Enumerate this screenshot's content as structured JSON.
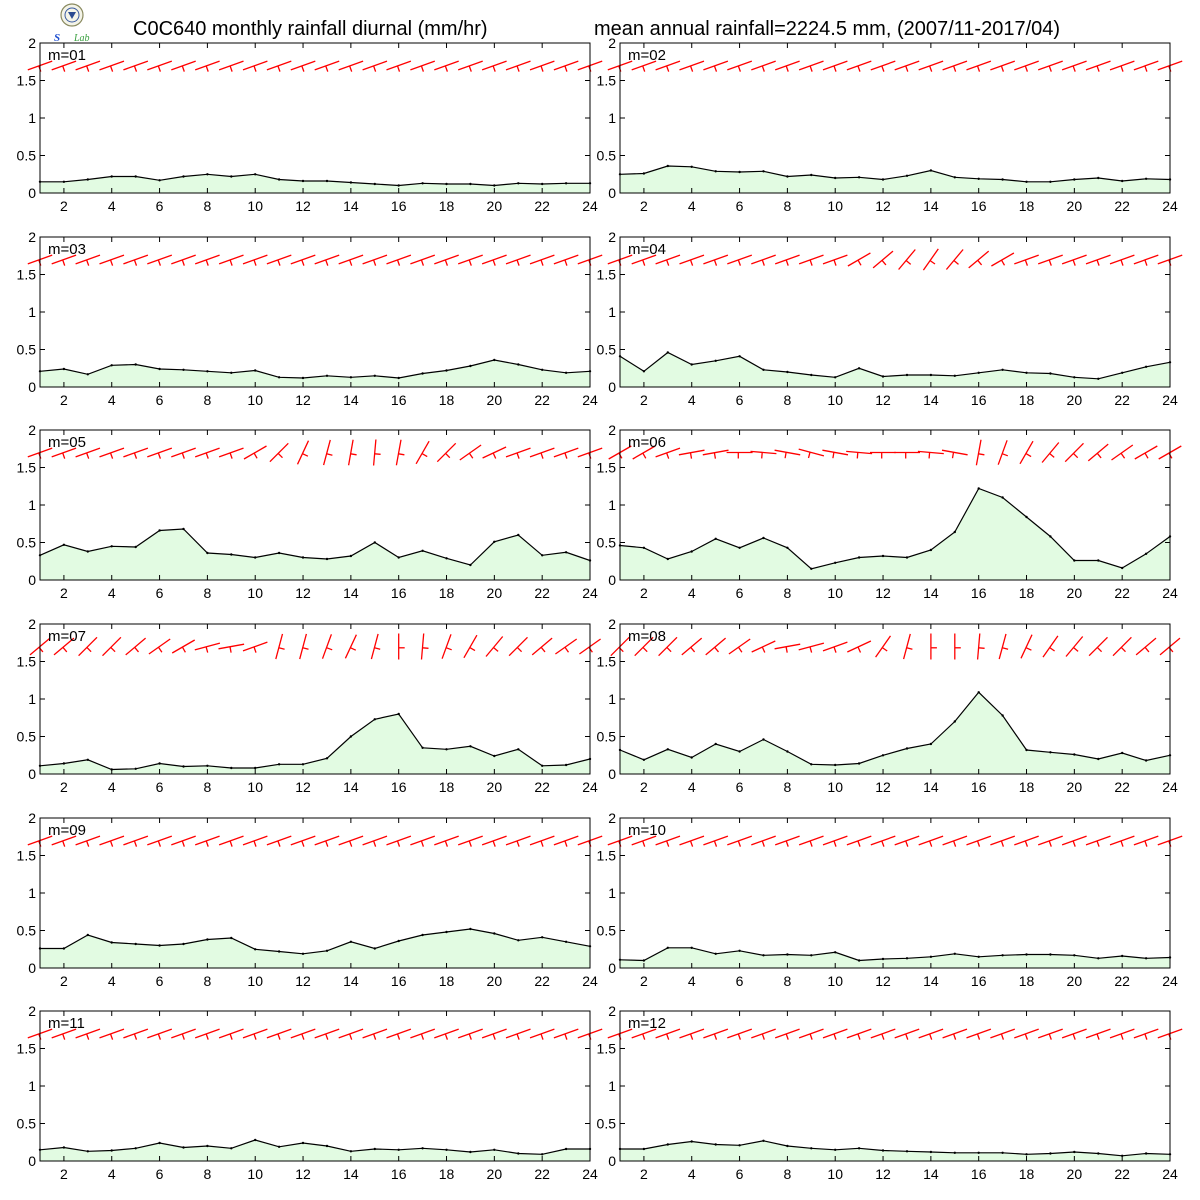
{
  "header": {
    "title_left": "C0C640 monthly rainfall diurnal (mm/hr)",
    "title_right": "mean annual rainfall=2224.5 mm, (2007/11-2017/04)",
    "logo_text": "Lab"
  },
  "colors": {
    "rain_fill": "#e2fbe2",
    "rain_line": "#000000",
    "wind_barb": "#ff0000",
    "axis": "#000000"
  },
  "axes": {
    "x_ticks": [
      2,
      4,
      6,
      8,
      10,
      12,
      14,
      16,
      18,
      20,
      22,
      24
    ],
    "y_ticks": [
      "0",
      "0.5",
      "1",
      "1.5",
      "2"
    ],
    "xlim": [
      1,
      24
    ],
    "ylim": [
      0,
      2
    ]
  },
  "chart_data": [
    {
      "type": "area",
      "label": "m=01",
      "x": [
        1,
        2,
        3,
        4,
        5,
        6,
        7,
        8,
        9,
        10,
        11,
        12,
        13,
        14,
        15,
        16,
        17,
        18,
        19,
        20,
        21,
        22,
        23,
        24
      ],
      "values": [
        0.15,
        0.15,
        0.18,
        0.22,
        0.22,
        0.17,
        0.22,
        0.25,
        0.22,
        0.25,
        0.18,
        0.16,
        0.16,
        0.14,
        0.12,
        0.1,
        0.13,
        0.12,
        0.12,
        0.1,
        0.13,
        0.12,
        0.13,
        0.13
      ],
      "wind_dir": [
        250,
        250,
        250,
        250,
        250,
        250,
        250,
        250,
        250,
        250,
        250,
        250,
        250,
        250,
        250,
        250,
        250,
        250,
        250,
        250,
        250,
        250,
        250,
        250
      ]
    },
    {
      "type": "area",
      "label": "m=02",
      "x": [
        1,
        2,
        3,
        4,
        5,
        6,
        7,
        8,
        9,
        10,
        11,
        12,
        13,
        14,
        15,
        16,
        17,
        18,
        19,
        20,
        21,
        22,
        23,
        24
      ],
      "values": [
        0.25,
        0.26,
        0.36,
        0.35,
        0.29,
        0.28,
        0.29,
        0.22,
        0.24,
        0.2,
        0.21,
        0.18,
        0.23,
        0.3,
        0.21,
        0.19,
        0.18,
        0.15,
        0.15,
        0.18,
        0.2,
        0.16,
        0.19,
        0.18
      ],
      "wind_dir": [
        250,
        250,
        250,
        250,
        250,
        250,
        250,
        250,
        250,
        250,
        250,
        250,
        250,
        250,
        250,
        250,
        250,
        250,
        250,
        250,
        250,
        250,
        250,
        250
      ]
    },
    {
      "type": "area",
      "label": "m=03",
      "x": [
        1,
        2,
        3,
        4,
        5,
        6,
        7,
        8,
        9,
        10,
        11,
        12,
        13,
        14,
        15,
        16,
        17,
        18,
        19,
        20,
        21,
        22,
        23,
        24
      ],
      "values": [
        0.21,
        0.24,
        0.17,
        0.29,
        0.3,
        0.24,
        0.23,
        0.21,
        0.19,
        0.22,
        0.13,
        0.12,
        0.15,
        0.13,
        0.15,
        0.12,
        0.18,
        0.22,
        0.28,
        0.36,
        0.3,
        0.23,
        0.19,
        0.21
      ],
      "wind_dir": [
        250,
        250,
        250,
        250,
        250,
        250,
        250,
        250,
        250,
        250,
        250,
        250,
        250,
        250,
        250,
        250,
        250,
        250,
        250,
        250,
        250,
        250,
        250,
        250
      ]
    },
    {
      "type": "area",
      "label": "m=04",
      "x": [
        1,
        2,
        3,
        4,
        5,
        6,
        7,
        8,
        9,
        10,
        11,
        12,
        13,
        14,
        15,
        16,
        17,
        18,
        19,
        20,
        21,
        22,
        23,
        24
      ],
      "values": [
        0.41,
        0.21,
        0.46,
        0.3,
        0.35,
        0.41,
        0.23,
        0.2,
        0.16,
        0.13,
        0.25,
        0.14,
        0.16,
        0.16,
        0.15,
        0.19,
        0.23,
        0.19,
        0.18,
        0.13,
        0.11,
        0.19,
        0.27,
        0.33
      ],
      "wind_dir": [
        250,
        250,
        250,
        250,
        250,
        250,
        250,
        250,
        250,
        250,
        240,
        230,
        220,
        215,
        220,
        230,
        240,
        250,
        250,
        250,
        250,
        250,
        250,
        250
      ]
    },
    {
      "type": "area",
      "label": "m=05",
      "x": [
        1,
        2,
        3,
        4,
        5,
        6,
        7,
        8,
        9,
        10,
        11,
        12,
        13,
        14,
        15,
        16,
        17,
        18,
        19,
        20,
        21,
        22,
        23,
        24
      ],
      "values": [
        0.33,
        0.47,
        0.38,
        0.45,
        0.44,
        0.66,
        0.68,
        0.36,
        0.34,
        0.3,
        0.36,
        0.3,
        0.28,
        0.32,
        0.5,
        0.3,
        0.39,
        0.29,
        0.2,
        0.51,
        0.6,
        0.33,
        0.37,
        0.26
      ],
      "wind_dir": [
        250,
        250,
        250,
        250,
        250,
        250,
        250,
        250,
        250,
        240,
        225,
        205,
        195,
        190,
        185,
        190,
        210,
        225,
        235,
        245,
        250,
        250,
        250,
        250
      ]
    },
    {
      "type": "area",
      "label": "m=06",
      "x": [
        1,
        2,
        3,
        4,
        5,
        6,
        7,
        8,
        9,
        10,
        11,
        12,
        13,
        14,
        15,
        16,
        17,
        18,
        19,
        20,
        21,
        22,
        23,
        24
      ],
      "values": [
        0.46,
        0.43,
        0.28,
        0.38,
        0.55,
        0.43,
        0.56,
        0.43,
        0.15,
        0.23,
        0.3,
        0.32,
        0.3,
        0.4,
        0.64,
        1.22,
        1.1,
        0.84,
        0.58,
        0.26,
        0.26,
        0.16,
        0.35,
        0.58
      ],
      "wind_dir": [
        240,
        240,
        250,
        260,
        260,
        270,
        275,
        280,
        285,
        280,
        275,
        270,
        270,
        275,
        280,
        190,
        200,
        210,
        220,
        225,
        230,
        235,
        240,
        240
      ]
    },
    {
      "type": "area",
      "label": "m=07",
      "x": [
        1,
        2,
        3,
        4,
        5,
        6,
        7,
        8,
        9,
        10,
        11,
        12,
        13,
        14,
        15,
        16,
        17,
        18,
        19,
        20,
        21,
        22,
        23,
        24
      ],
      "values": [
        0.11,
        0.14,
        0.19,
        0.06,
        0.07,
        0.14,
        0.1,
        0.11,
        0.08,
        0.08,
        0.13,
        0.13,
        0.21,
        0.5,
        0.73,
        0.8,
        0.35,
        0.33,
        0.37,
        0.24,
        0.33,
        0.11,
        0.12,
        0.2
      ],
      "wind_dir": [
        230,
        230,
        225,
        225,
        230,
        235,
        240,
        255,
        260,
        250,
        195,
        195,
        200,
        205,
        195,
        180,
        185,
        200,
        210,
        220,
        225,
        230,
        235,
        235
      ]
    },
    {
      "type": "area",
      "label": "m=08",
      "x": [
        1,
        2,
        3,
        4,
        5,
        6,
        7,
        8,
        9,
        10,
        11,
        12,
        13,
        14,
        15,
        16,
        17,
        18,
        19,
        20,
        21,
        22,
        23,
        24
      ],
      "values": [
        0.32,
        0.19,
        0.33,
        0.22,
        0.4,
        0.3,
        0.46,
        0.3,
        0.13,
        0.12,
        0.14,
        0.25,
        0.34,
        0.4,
        0.7,
        1.09,
        0.78,
        0.32,
        0.29,
        0.26,
        0.2,
        0.28,
        0.18,
        0.25
      ],
      "wind_dir": [
        225,
        225,
        225,
        230,
        230,
        235,
        245,
        260,
        255,
        250,
        245,
        215,
        195,
        180,
        180,
        185,
        195,
        205,
        215,
        220,
        225,
        225,
        230,
        230
      ]
    },
    {
      "type": "area",
      "label": "m=09",
      "x": [
        1,
        2,
        3,
        4,
        5,
        6,
        7,
        8,
        9,
        10,
        11,
        12,
        13,
        14,
        15,
        16,
        17,
        18,
        19,
        20,
        21,
        22,
        23,
        24
      ],
      "values": [
        0.26,
        0.26,
        0.44,
        0.34,
        0.32,
        0.3,
        0.32,
        0.38,
        0.4,
        0.25,
        0.22,
        0.19,
        0.23,
        0.35,
        0.26,
        0.36,
        0.44,
        0.48,
        0.52,
        0.46,
        0.37,
        0.41,
        0.35,
        0.29
      ],
      "wind_dir": [
        250,
        250,
        250,
        250,
        250,
        250,
        250,
        250,
        250,
        250,
        250,
        250,
        250,
        250,
        250,
        250,
        250,
        250,
        250,
        250,
        250,
        250,
        250,
        250
      ]
    },
    {
      "type": "area",
      "label": "m=10",
      "x": [
        1,
        2,
        3,
        4,
        5,
        6,
        7,
        8,
        9,
        10,
        11,
        12,
        13,
        14,
        15,
        16,
        17,
        18,
        19,
        20,
        21,
        22,
        23,
        24
      ],
      "values": [
        0.11,
        0.1,
        0.27,
        0.27,
        0.19,
        0.23,
        0.17,
        0.18,
        0.17,
        0.21,
        0.1,
        0.12,
        0.13,
        0.15,
        0.19,
        0.15,
        0.17,
        0.18,
        0.18,
        0.17,
        0.13,
        0.16,
        0.13,
        0.14
      ],
      "wind_dir": [
        250,
        250,
        250,
        250,
        250,
        250,
        250,
        250,
        250,
        250,
        250,
        250,
        250,
        250,
        250,
        250,
        250,
        250,
        250,
        250,
        250,
        250,
        250,
        250
      ]
    },
    {
      "type": "area",
      "label": "m=11",
      "x": [
        1,
        2,
        3,
        4,
        5,
        6,
        7,
        8,
        9,
        10,
        11,
        12,
        13,
        14,
        15,
        16,
        17,
        18,
        19,
        20,
        21,
        22,
        23,
        24
      ],
      "values": [
        0.15,
        0.18,
        0.13,
        0.14,
        0.17,
        0.24,
        0.18,
        0.2,
        0.17,
        0.28,
        0.19,
        0.24,
        0.2,
        0.13,
        0.16,
        0.15,
        0.17,
        0.15,
        0.12,
        0.15,
        0.1,
        0.09,
        0.16,
        0.16
      ],
      "wind_dir": [
        250,
        250,
        250,
        250,
        250,
        250,
        250,
        250,
        250,
        250,
        250,
        250,
        250,
        250,
        250,
        250,
        250,
        250,
        250,
        250,
        250,
        250,
        250,
        250
      ]
    },
    {
      "type": "area",
      "label": "m=12",
      "x": [
        1,
        2,
        3,
        4,
        5,
        6,
        7,
        8,
        9,
        10,
        11,
        12,
        13,
        14,
        15,
        16,
        17,
        18,
        19,
        20,
        21,
        22,
        23,
        24
      ],
      "values": [
        0.16,
        0.16,
        0.22,
        0.26,
        0.22,
        0.21,
        0.27,
        0.2,
        0.17,
        0.15,
        0.17,
        0.14,
        0.13,
        0.12,
        0.11,
        0.11,
        0.11,
        0.09,
        0.1,
        0.12,
        0.1,
        0.07,
        0.1,
        0.09
      ],
      "wind_dir": [
        250,
        250,
        250,
        250,
        250,
        250,
        250,
        250,
        250,
        250,
        250,
        250,
        250,
        250,
        250,
        250,
        250,
        250,
        250,
        250,
        250,
        250,
        250,
        250
      ]
    }
  ]
}
